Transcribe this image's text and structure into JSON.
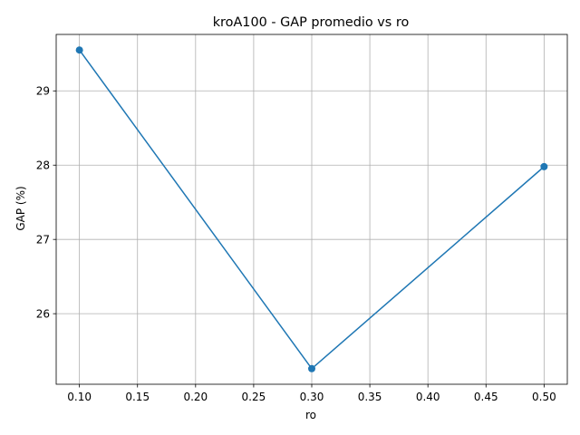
{
  "chart_data": {
    "type": "line",
    "title": "kroA100 - GAP promedio vs ro",
    "xlabel": "ro",
    "ylabel": "GAP (%)",
    "x": [
      0.1,
      0.3,
      0.5
    ],
    "series": [
      {
        "values": [
          29.55,
          25.26,
          27.98
        ],
        "color": "#1f77b4",
        "marker": "circle"
      }
    ],
    "xlim": [
      0.08,
      0.52
    ],
    "ylim": [
      25.05,
      29.76
    ],
    "xticks": [
      0.1,
      0.15,
      0.2,
      0.25,
      0.3,
      0.35,
      0.4,
      0.45,
      0.5
    ],
    "xtick_labels": [
      "0.10",
      "0.15",
      "0.20",
      "0.25",
      "0.30",
      "0.35",
      "0.40",
      "0.45",
      "0.50"
    ],
    "yticks": [
      26,
      27,
      28,
      29
    ],
    "ytick_labels": [
      "26",
      "27",
      "28",
      "29"
    ],
    "grid": true,
    "legend": false
  }
}
